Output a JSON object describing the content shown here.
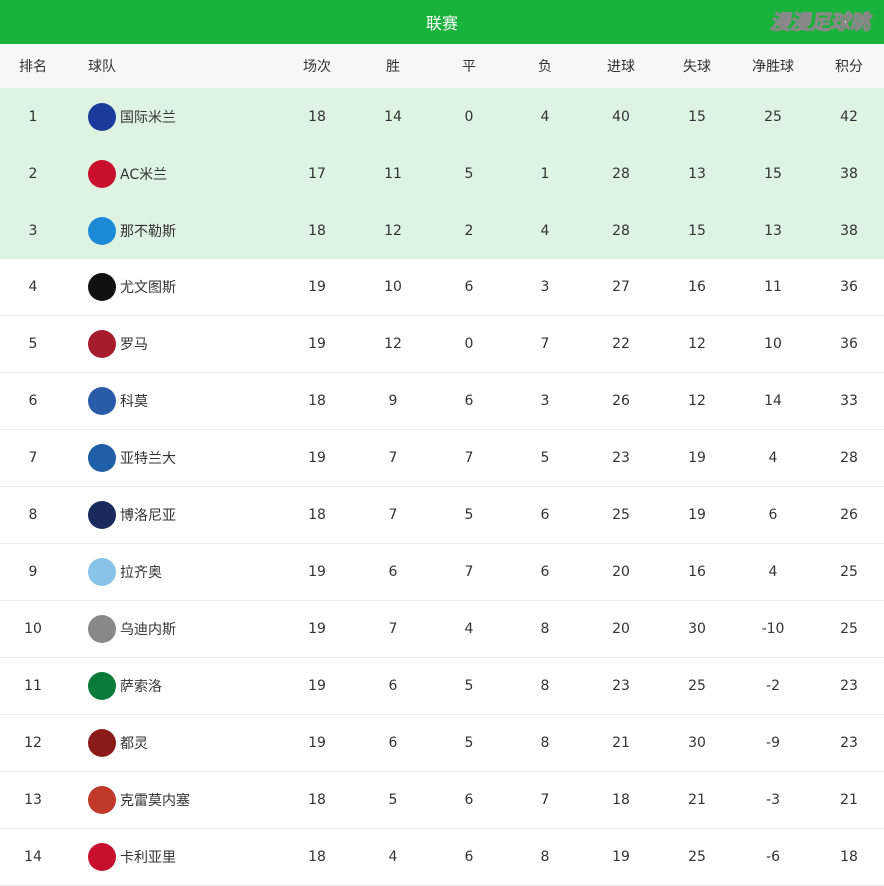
{
  "title": "联赛",
  "headers": {
    "rank": "排名",
    "team": "球队",
    "played": "场次",
    "won": "胜",
    "drawn": "平",
    "lost": "负",
    "gf": "进球",
    "ga": "失球",
    "gd": "净胜球",
    "pts": "积分"
  },
  "highlight_color": "#dff3e2",
  "accent": "#19b23b",
  "rows": [
    {
      "rank": "1",
      "team": "国际米兰",
      "p": "18",
      "w": "14",
      "d": "0",
      "l": "4",
      "gf": "40",
      "ga": "15",
      "gd": "25",
      "pts": "42",
      "logo": "#1a3a9c"
    },
    {
      "rank": "2",
      "team": "AC米兰",
      "p": "17",
      "w": "11",
      "d": "5",
      "l": "1",
      "gf": "28",
      "ga": "13",
      "gd": "15",
      "pts": "38",
      "logo": "#c8102e"
    },
    {
      "rank": "3",
      "team": "那不勒斯",
      "p": "18",
      "w": "12",
      "d": "2",
      "l": "4",
      "gf": "28",
      "ga": "15",
      "gd": "13",
      "pts": "38",
      "logo": "#1c8ad6"
    },
    {
      "rank": "4",
      "team": "尤文图斯",
      "p": "19",
      "w": "10",
      "d": "6",
      "l": "3",
      "gf": "27",
      "ga": "16",
      "gd": "11",
      "pts": "36",
      "logo": "#111111"
    },
    {
      "rank": "5",
      "team": "罗马",
      "p": "19",
      "w": "12",
      "d": "0",
      "l": "7",
      "gf": "22",
      "ga": "12",
      "gd": "10",
      "pts": "36",
      "logo": "#a51d2d"
    },
    {
      "rank": "6",
      "team": "科莫",
      "p": "18",
      "w": "9",
      "d": "6",
      "l": "3",
      "gf": "26",
      "ga": "12",
      "gd": "14",
      "pts": "33",
      "logo": "#2a5ba8"
    },
    {
      "rank": "7",
      "team": "亚特兰大",
      "p": "19",
      "w": "7",
      "d": "7",
      "l": "5",
      "gf": "23",
      "ga": "19",
      "gd": "4",
      "pts": "28",
      "logo": "#1e5fa8"
    },
    {
      "rank": "8",
      "team": "博洛尼亚",
      "p": "18",
      "w": "7",
      "d": "5",
      "l": "6",
      "gf": "25",
      "ga": "19",
      "gd": "6",
      "pts": "26",
      "logo": "#1b2a5c"
    },
    {
      "rank": "9",
      "team": "拉齐奥",
      "p": "19",
      "w": "6",
      "d": "7",
      "l": "6",
      "gf": "20",
      "ga": "16",
      "gd": "4",
      "pts": "25",
      "logo": "#87c4e8"
    },
    {
      "rank": "10",
      "team": "乌迪内斯",
      "p": "19",
      "w": "7",
      "d": "4",
      "l": "8",
      "gf": "20",
      "ga": "30",
      "gd": "-10",
      "pts": "25",
      "logo": "#888888"
    },
    {
      "rank": "11",
      "team": "萨索洛",
      "p": "19",
      "w": "6",
      "d": "5",
      "l": "8",
      "gf": "23",
      "ga": "25",
      "gd": "-2",
      "pts": "23",
      "logo": "#0a7a3a"
    },
    {
      "rank": "12",
      "team": "都灵",
      "p": "19",
      "w": "6",
      "d": "5",
      "l": "8",
      "gf": "21",
      "ga": "30",
      "gd": "-9",
      "pts": "23",
      "logo": "#8b1a1a"
    },
    {
      "rank": "13",
      "team": "克雷莫内塞",
      "p": "18",
      "w": "5",
      "d": "6",
      "l": "7",
      "gf": "18",
      "ga": "21",
      "gd": "-3",
      "pts": "21",
      "logo": "#c0392b"
    },
    {
      "rank": "14",
      "team": "卡利亚里",
      "p": "18",
      "w": "4",
      "d": "6",
      "l": "8",
      "gf": "19",
      "ga": "25",
      "gd": "-6",
      "pts": "18",
      "logo": "#c8102e"
    }
  ],
  "watermark": "漫漫足球眺"
}
